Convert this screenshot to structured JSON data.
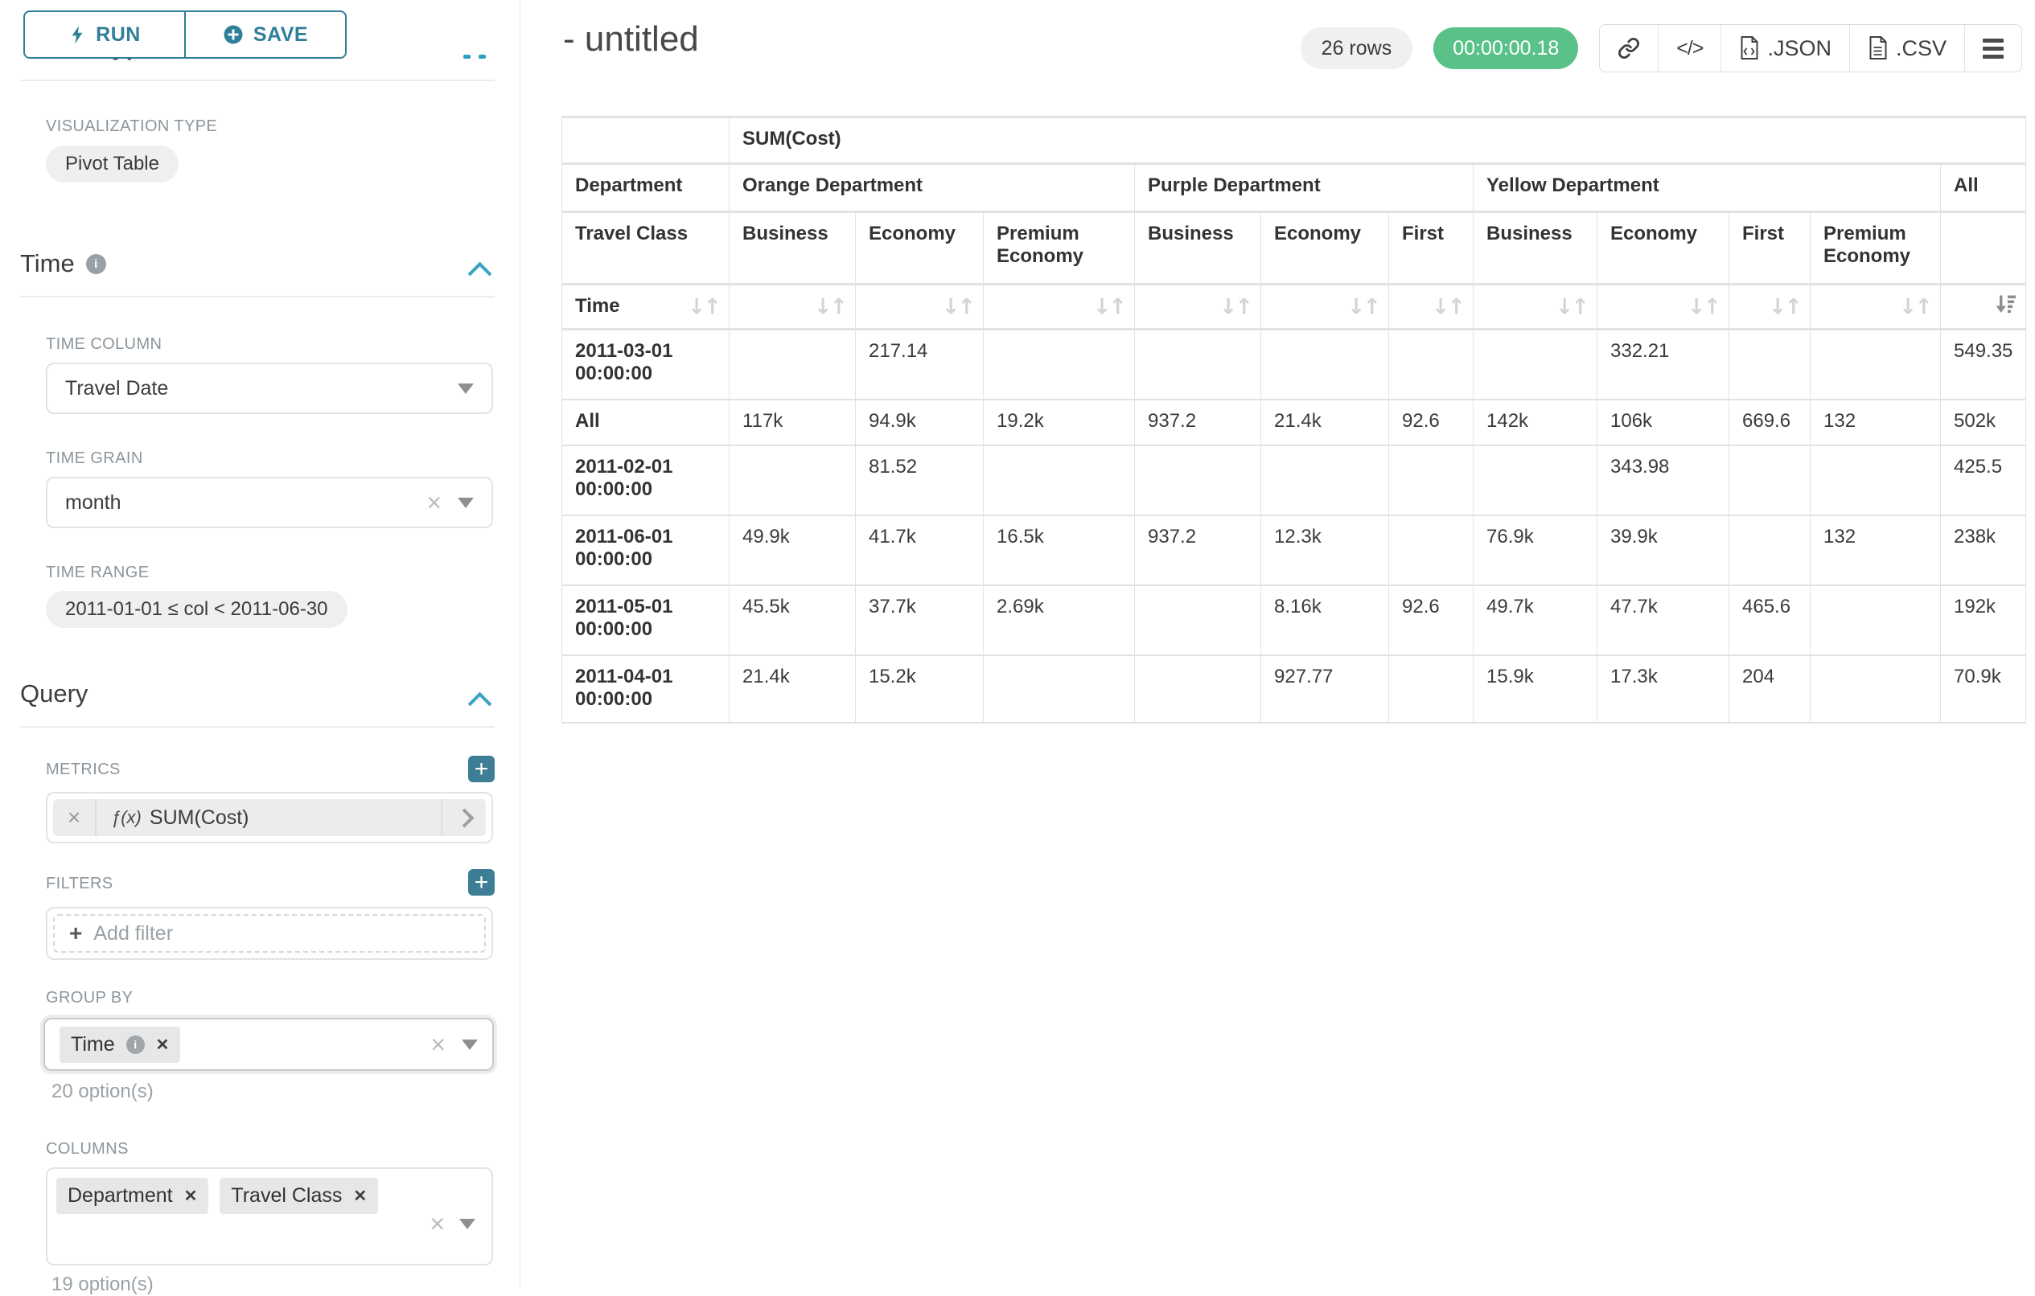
{
  "colors": {
    "accent_teal": "#2f7f99",
    "accent_bright": "#3aa3c6",
    "success_green": "#5ac189",
    "label_gray": "#8b959c"
  },
  "sidebar": {
    "run_label": "RUN",
    "save_label": "SAVE",
    "chart_type_heading": "Chart Type",
    "viz": {
      "label": "VISUALIZATION TYPE",
      "value": "Pivot Table"
    },
    "time": {
      "title": "Time",
      "time_column_label": "TIME COLUMN",
      "time_column_value": "Travel Date",
      "time_grain_label": "TIME GRAIN",
      "time_grain_value": "month",
      "time_range_label": "TIME RANGE",
      "time_range_value": "2011-01-01 ≤ col < 2011-06-30"
    },
    "query": {
      "title": "Query",
      "metrics_label": "METRICS",
      "metric_fn": "ƒ(x)",
      "metric_name": "SUM(Cost)",
      "filters_label": "FILTERS",
      "add_filter_label": "Add filter",
      "group_by_label": "GROUP BY",
      "group_by_tags": [
        "Time"
      ],
      "group_by_hint": "20 option(s)",
      "columns_label": "COLUMNS",
      "columns_tags": [
        "Department",
        "Travel Class"
      ],
      "columns_hint": "19 option(s)"
    }
  },
  "header": {
    "title": "- untitled",
    "rows_badge": "26 rows",
    "timer": "00:00:00.18",
    "code_glyph": "</>",
    "json_label": ".JSON",
    "csv_label": ".CSV"
  },
  "chart_data": {
    "type": "table",
    "metric_header": "SUM(Cost)",
    "corner": {
      "row2": "Department",
      "row3": "Travel Class",
      "row4": "Time"
    },
    "column_groups": [
      {
        "name": "Orange Department",
        "cols": [
          "Business",
          "Economy",
          "Premium Economy"
        ]
      },
      {
        "name": "Purple Department",
        "cols": [
          "Business",
          "Economy",
          "First"
        ]
      },
      {
        "name": "Yellow Department",
        "cols": [
          "Business",
          "Economy",
          "First",
          "Premium Economy"
        ]
      },
      {
        "name": "All",
        "cols": [
          ""
        ]
      }
    ],
    "rows": [
      {
        "label": "2011-03-01 00:00:00",
        "values": [
          "",
          "217.14",
          "",
          "",
          "",
          "",
          "",
          "332.21",
          "",
          "",
          "549.35"
        ]
      },
      {
        "label": "All",
        "values": [
          "117k",
          "94.9k",
          "19.2k",
          "937.2",
          "21.4k",
          "92.6",
          "142k",
          "106k",
          "669.6",
          "132",
          "502k"
        ]
      },
      {
        "label": "2011-02-01 00:00:00",
        "values": [
          "",
          "81.52",
          "",
          "",
          "",
          "",
          "",
          "343.98",
          "",
          "",
          "425.5"
        ]
      },
      {
        "label": "2011-06-01 00:00:00",
        "values": [
          "49.9k",
          "41.7k",
          "16.5k",
          "937.2",
          "12.3k",
          "",
          "76.9k",
          "39.9k",
          "",
          "132",
          "238k"
        ]
      },
      {
        "label": "2011-05-01 00:00:00",
        "values": [
          "45.5k",
          "37.7k",
          "2.69k",
          "",
          "8.16k",
          "92.6",
          "49.7k",
          "47.7k",
          "465.6",
          "",
          "192k"
        ]
      },
      {
        "label": "2011-04-01 00:00:00",
        "values": [
          "21.4k",
          "15.2k",
          "",
          "",
          "927.77",
          "",
          "15.9k",
          "17.3k",
          "204",
          "",
          "70.9k"
        ]
      }
    ]
  }
}
